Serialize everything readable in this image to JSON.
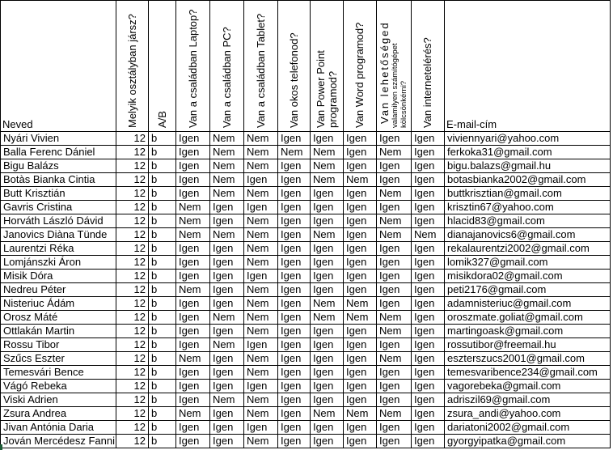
{
  "table": {
    "columns": [
      {
        "key": "name",
        "label": "Neved",
        "rotated": false
      },
      {
        "key": "class",
        "label": "Melyik osztályban jársz?",
        "rotated": true
      },
      {
        "key": "ab",
        "label": "A/B",
        "rotated": true
      },
      {
        "key": "laptop",
        "label": "Van a családban Laptop?",
        "rotated": true
      },
      {
        "key": "pc",
        "label": "Van a családban PC?",
        "rotated": true
      },
      {
        "key": "tablet",
        "label": "Van a családban Tablet?",
        "rotated": true
      },
      {
        "key": "phone",
        "label": "Van okos telefonod?",
        "rotated": true
      },
      {
        "key": "ppt",
        "label": "Van Power Point programod?",
        "rotated": true,
        "lines": [
          "Van Power Point",
          "programod?"
        ]
      },
      {
        "key": "word",
        "label": "Van Word programod?",
        "rotated": true
      },
      {
        "key": "borrow",
        "label": "Van lehetőséged valamilyen számítógépet kölcsönkérni?",
        "rotated": true,
        "lines": [
          "Van lehetőséged",
          "valamilyen számítógépet",
          "kölcsönkérni?"
        ]
      },
      {
        "key": "internet",
        "label": "Van internetelérés?",
        "rotated": true
      },
      {
        "key": "email",
        "label": "E-mail-cím",
        "rotated": false
      }
    ],
    "rows": [
      [
        "Nyári Vivien",
        "12",
        "b",
        "Igen",
        "Nem",
        "Nem",
        "Igen",
        "Igen",
        "Igen",
        "Igen",
        "Igen",
        "viviennyari@yahoo.com"
      ],
      [
        "Balla Ferenc Dániel",
        "12",
        "b",
        "Igen",
        "Nem",
        "Nem",
        "Nem",
        "Nem",
        "Igen",
        "Nem",
        "Igen",
        "ferkoka31@gmail.com"
      ],
      [
        "Bigu Balázs",
        "12",
        "b",
        "Igen",
        "Nem",
        "Nem",
        "Igen",
        "Nem",
        "Igen",
        "Igen",
        "Igen",
        "bigu.balazs@gmail.hu"
      ],
      [
        "Botàs Bianka Cintia",
        "12",
        "b",
        "Igen",
        "Nem",
        "Igen",
        "Igen",
        "Nem",
        "Nem",
        "Igen",
        "Igen",
        "botasbianka2002@gmail.com"
      ],
      [
        "Butt Krisztián",
        "12",
        "b",
        "Igen",
        "Nem",
        "Nem",
        "Igen",
        "Igen",
        "Igen",
        "Nem",
        "Igen",
        "buttkrisztian@gmail.com"
      ],
      [
        "Gavris Cristina",
        "12",
        "b",
        "Nem",
        "Igen",
        "Igen",
        "Igen",
        "Igen",
        "Igen",
        "Igen",
        "Igen",
        "krisztin67@yahoo.com"
      ],
      [
        "Horváth László Dávid",
        "12",
        "b",
        "Nem",
        "Igen",
        "Nem",
        "Igen",
        "Igen",
        "Igen",
        "Nem",
        "Igen",
        "hlacid83@gmail.com"
      ],
      [
        "Janovics Diàna Tünde",
        "12",
        "b",
        "Nem",
        "Nem",
        "Nem",
        "Igen",
        "Nem",
        "Igen",
        "Nem",
        "Nem",
        "dianajanovics6@gmail.com"
      ],
      [
        "Laurentzi Réka",
        "12",
        "b",
        "Igen",
        "Igen",
        "Nem",
        "Igen",
        "Igen",
        "Igen",
        "Igen",
        "Igen",
        "rekalaurentzi2002@gmail.com"
      ],
      [
        "Lomjánszki Áron",
        "12",
        "b",
        "Igen",
        "Igen",
        "Nem",
        "Igen",
        "Igen",
        "Igen",
        "Igen",
        "Igen",
        "lomik327@gmail.com"
      ],
      [
        "Misik Dóra",
        "12",
        "b",
        "Igen",
        "Igen",
        "Igen",
        "Igen",
        "Igen",
        "Igen",
        "Igen",
        "Igen",
        "misikdora02@gmail.com"
      ],
      [
        "Nedreu Péter",
        "12",
        "b",
        "Nem",
        "Igen",
        "Nem",
        "Igen",
        "Igen",
        "Igen",
        "Igen",
        "Igen",
        "peti2176@gmail.com"
      ],
      [
        "Nisteriuc Ádám",
        "12",
        "b",
        "Igen",
        "Igen",
        "Nem",
        "Igen",
        "Nem",
        "Nem",
        "Igen",
        "Igen",
        "adamnisteriuc@gmail.com"
      ],
      [
        "Orosz Máté",
        "12",
        "b",
        "Igen",
        "Nem",
        "Nem",
        "Igen",
        "Nem",
        "Nem",
        "Nem",
        "Igen",
        "oroszmate.goliat@gmail.com"
      ],
      [
        "Ottlakán Martin",
        "12",
        "b",
        "Igen",
        "Igen",
        "Nem",
        "Igen",
        "Igen",
        "Igen",
        "Nem",
        "Igen",
        "martingoask@gmail.com"
      ],
      [
        "Rossu Tibor",
        "12",
        "b",
        "Igen",
        "Nem",
        "Igen",
        "Igen",
        "Igen",
        "Igen",
        "Igen",
        "Igen",
        "rossutibor@freemail.hu"
      ],
      [
        "Szűcs Eszter",
        "12",
        "b",
        "Nem",
        "Igen",
        "Nem",
        "Igen",
        "Igen",
        "Igen",
        "Nem",
        "Igen",
        "eszterszucs2001@gmail.com"
      ],
      [
        "Temesvári Bence",
        "12",
        "b",
        "Igen",
        "Igen",
        "Nem",
        "Igen",
        "Igen",
        "Igen",
        "Igen",
        "Igen",
        "temesvaribence234@gmail.com"
      ],
      [
        "Vágó Rebeka",
        "12",
        "b",
        "Igen",
        "Igen",
        "Igen",
        "Igen",
        "Igen",
        "Igen",
        "Igen",
        "Igen",
        "vagorebeka@gmail.com"
      ],
      [
        "Viski Adrien",
        "12",
        "b",
        "Igen",
        "Nem",
        "Nem",
        "Igen",
        "Igen",
        "Igen",
        "Igen",
        "Igen",
        "adriszil69@gmail.com"
      ],
      [
        "Zsura Andrea",
        "12",
        "b",
        "Nem",
        "Igen",
        "Nem",
        "Igen",
        "Nem",
        "Nem",
        "Nem",
        "Igen",
        "zsura_andi@yahoo.com"
      ],
      [
        "Jivan Antónia Daria",
        "12",
        "b",
        "Igen",
        "Igen",
        "Igen",
        "Igen",
        "Igen",
        "Igen",
        "Igen",
        "Igen",
        "dariatoni2002@gmail.com"
      ],
      [
        "Jován Mercédesz Fanni",
        "12",
        "b",
        "Igen",
        "Igen",
        "Nem",
        "Igen",
        "Igen",
        "Igen",
        "Igen",
        "Igen",
        "gyorgyipatka@gmail.com"
      ]
    ]
  },
  "colors": {
    "cell_border": "#000000",
    "text": "#000000",
    "background": "#ffffff",
    "selection_green": "#1d5c37"
  }
}
